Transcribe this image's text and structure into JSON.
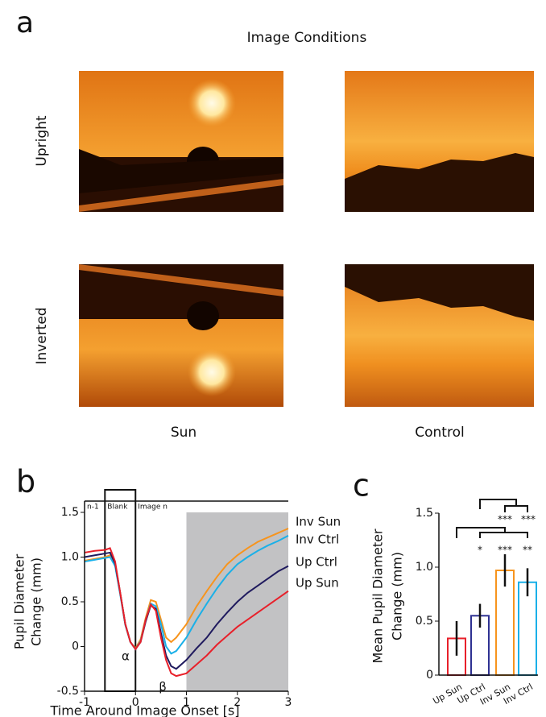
{
  "panel_a": {
    "label": "a",
    "title": "Image Conditions",
    "rows": [
      "Upright",
      "Inverted"
    ],
    "columns": [
      "Sun",
      "Control"
    ]
  },
  "chart_data": [
    {
      "type": "line",
      "panel_label": "b",
      "ylabel": [
        "Pupil Diameter",
        "Change (mm)"
      ],
      "xlabel": "Time Around Image Onset [s]",
      "x": [
        -1,
        -0.8,
        -0.6,
        -0.5,
        -0.4,
        -0.3,
        -0.2,
        -0.1,
        0,
        0.1,
        0.2,
        0.3,
        0.4,
        0.5,
        0.6,
        0.7,
        0.8,
        1.0,
        1.2,
        1.4,
        1.6,
        1.8,
        2,
        2.2,
        2.4,
        2.6,
        2.8,
        3
      ],
      "series": [
        {
          "name": "Inv Sun",
          "color": "#f7941d",
          "values": [
            0.96,
            0.98,
            1.0,
            1.02,
            0.92,
            0.6,
            0.25,
            0.05,
            -0.02,
            0.08,
            0.32,
            0.52,
            0.5,
            0.3,
            0.1,
            0.05,
            0.1,
            0.25,
            0.45,
            0.62,
            0.78,
            0.92,
            1.02,
            1.1,
            1.17,
            1.22,
            1.27,
            1.32
          ]
        },
        {
          "name": "Inv Ctrl",
          "color": "#1ab0e8",
          "values": [
            0.95,
            0.97,
            0.99,
            1.0,
            0.9,
            0.58,
            0.24,
            0.05,
            -0.03,
            0.06,
            0.3,
            0.48,
            0.45,
            0.25,
            0.0,
            -0.08,
            -0.05,
            0.1,
            0.3,
            0.48,
            0.65,
            0.8,
            0.92,
            1.0,
            1.07,
            1.13,
            1.18,
            1.24
          ]
        },
        {
          "name": "Up Ctrl",
          "color": "#1f1a5e",
          "values": [
            1.0,
            1.02,
            1.04,
            1.05,
            0.93,
            0.6,
            0.25,
            0.05,
            -0.03,
            0.05,
            0.28,
            0.46,
            0.42,
            0.15,
            -0.1,
            -0.22,
            -0.25,
            -0.15,
            -0.02,
            0.1,
            0.25,
            0.38,
            0.5,
            0.6,
            0.68,
            0.76,
            0.84,
            0.9
          ]
        },
        {
          "name": "Up Sun",
          "color": "#e8202a",
          "values": [
            1.05,
            1.07,
            1.08,
            1.1,
            0.95,
            0.6,
            0.25,
            0.05,
            -0.03,
            0.05,
            0.3,
            0.47,
            0.4,
            0.1,
            -0.15,
            -0.3,
            -0.33,
            -0.3,
            -0.2,
            -0.1,
            0.02,
            0.12,
            0.22,
            0.3,
            0.38,
            0.46,
            0.54,
            0.62
          ]
        }
      ],
      "epochs": [
        {
          "label": "n-1",
          "start": -1,
          "end": -0.6
        },
        {
          "label": "Blank",
          "start": -0.6,
          "end": 0
        },
        {
          "label": "Image n",
          "start": 0,
          "end": 3
        }
      ],
      "shaded_region": [
        1,
        3
      ],
      "annotations": [
        "α",
        "β"
      ],
      "xlim": [
        -1,
        3
      ],
      "xticks": [
        -1,
        0,
        1,
        2,
        3
      ],
      "ylim": [
        -0.5,
        1.5
      ],
      "yticks": [
        -0.5,
        0,
        0.5,
        {
          "value": 1,
          "label": "1.0"
        },
        1.5
      ]
    },
    {
      "type": "bar",
      "panel_label": "c",
      "ylabel": [
        "Mean Pupil Diameter",
        "Change (mm)"
      ],
      "categories": [
        "Up Sun",
        "Up Ctrl",
        "Inv Sun",
        "Inv Ctrl"
      ],
      "values": [
        0.34,
        0.55,
        0.97,
        0.86
      ],
      "errors": [
        0.16,
        0.11,
        0.15,
        0.13
      ],
      "colors": [
        "#e8202a",
        "#2e3192",
        "#f7941d",
        "#1ab0e8"
      ],
      "significance": [
        {
          "labels": [
            "***",
            "***"
          ]
        },
        {
          "labels": [
            "*",
            "***",
            "**"
          ]
        }
      ],
      "ylim": [
        0,
        1.5
      ],
      "yticks": [
        0,
        0.5,
        {
          "value": 1,
          "label": "1.0"
        },
        1.5
      ]
    }
  ]
}
